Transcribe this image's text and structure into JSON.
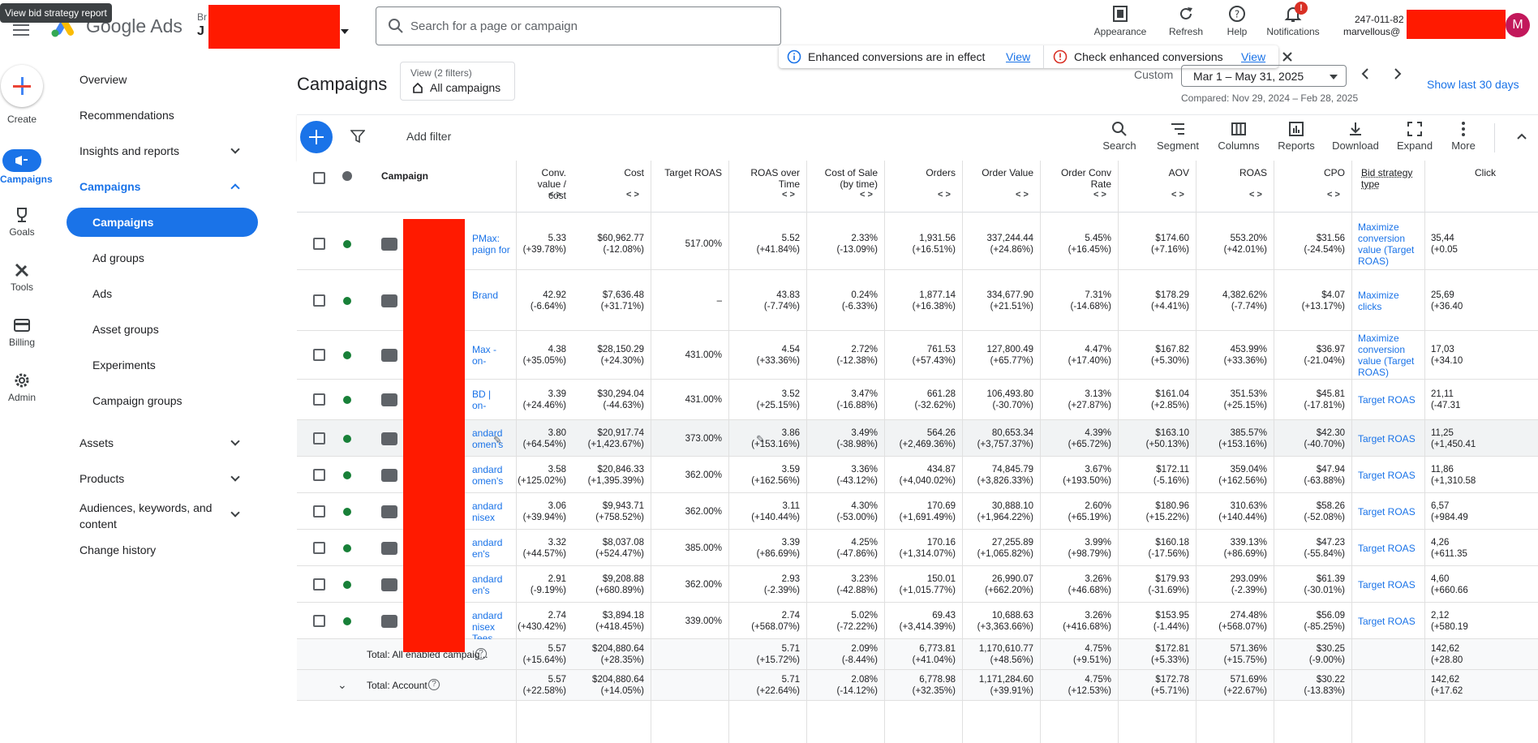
{
  "tooltip": "View bid strategy report",
  "header": {
    "brand": "Google Ads",
    "account_line1": "Br",
    "account_line2": "J",
    "search_placeholder": "Search for a page or campaign",
    "actions": [
      {
        "label": "Appearance",
        "icon": "appearance-icon"
      },
      {
        "label": "Refresh",
        "icon": "refresh-icon"
      },
      {
        "label": "Help",
        "icon": "help-icon"
      },
      {
        "label": "Notifications",
        "icon": "bell-icon"
      }
    ],
    "notification_badge": "!",
    "customer_id": "247-011-82",
    "customer_email": "marvellous@",
    "avatar_letter": "M"
  },
  "rail": [
    {
      "label": "Create",
      "icon": "plus-icon"
    },
    {
      "label": "Campaigns",
      "icon": "megaphone-icon"
    },
    {
      "label": "Goals",
      "icon": "trophy-icon"
    },
    {
      "label": "Tools",
      "icon": "tools-icon"
    },
    {
      "label": "Billing",
      "icon": "card-icon"
    },
    {
      "label": "Admin",
      "icon": "gear-icon"
    }
  ],
  "nav": {
    "overview": "Overview",
    "recommendations": "Recommendations",
    "insights": "Insights and reports",
    "campaigns_group": "Campaigns",
    "sub": [
      "Campaigns",
      "Ad groups",
      "Ads",
      "Asset groups",
      "Experiments",
      "Campaign groups"
    ],
    "assets": "Assets",
    "products": "Products",
    "audiences": "Audiences, keywords, and content",
    "change_history": "Change history"
  },
  "page": {
    "title": "Campaigns",
    "view_label": "View (2 filters)",
    "view_value": "All campaigns",
    "notice1": "Enhanced conversions are in effect",
    "notice1_link": "View",
    "notice2": "Check enhanced conversions",
    "notice2_link": "View",
    "date_label": "Custom",
    "date_range": "Mar 1 – May 31, 2025",
    "compared": "Compared: Nov 29, 2024 – Feb 28, 2025",
    "show_last": "Show last 30 days",
    "add_filter": "Add filter"
  },
  "tools": [
    "Search",
    "Segment",
    "Columns",
    "Reports",
    "Download",
    "Expand",
    "More"
  ],
  "columns": {
    "campaign": "Campaign",
    "conv_value_cost": "Conv. value / cost",
    "cost": "Cost",
    "target_roas": "Target ROAS",
    "roas_over_time": "ROAS over Time",
    "cost_of_sale": "Cost of Sale (by time)",
    "orders": "Orders",
    "order_value": "Order Value",
    "order_conv_rate": "Order Conv Rate",
    "aov": "AOV",
    "roas": "ROAS",
    "cpo": "CPO",
    "bid_strategy": "Bid strategy type",
    "clicks": "Click"
  },
  "rows": [
    {
      "name": "PMax:\npaign for",
      "type": "pmax",
      "cvc": "5.33",
      "cvc_d": "(+39.78%)",
      "cost": "$60,962.77",
      "cost_d": "(-12.08%)",
      "troas": "517.00%",
      "rot": "5.52",
      "rot_d": "(+41.84%)",
      "cos": "2.33%",
      "cos_d": "(-13.09%)",
      "orders": "1,931.56",
      "orders_d": "(+16.51%)",
      "ov": "337,244.44",
      "ov_d": "(+24.86%)",
      "ocr": "5.45%",
      "ocr_d": "(+16.45%)",
      "aov": "$174.60",
      "aov_d": "(+7.16%)",
      "roas": "553.20%",
      "roas_d": "(+42.01%)",
      "cpo": "$31.56",
      "cpo_d": "(-24.54%)",
      "bid": "Maximize\nconversion\nvalue (Target\nROAS)",
      "clicks": "35,44",
      "clicks_d": "(+0.05"
    },
    {
      "name": "Brand",
      "type": "search",
      "cvc": "42.92",
      "cvc_d": "(-6.64%)",
      "cost": "$7,636.48",
      "cost_d": "(+31.71%)",
      "troas": "–",
      "rot": "43.83",
      "rot_d": "(-7.74%)",
      "cos": "0.24%",
      "cos_d": "(-6.33%)",
      "orders": "1,877.14",
      "orders_d": "(+16.38%)",
      "ov": "334,677.90",
      "ov_d": "(+21.51%)",
      "ocr": "7.31%",
      "ocr_d": "(-14.68%)",
      "aov": "$178.29",
      "aov_d": "(+4.41%)",
      "roas": "4,382.62%",
      "roas_d": "(-7.74%)",
      "cpo": "$4.07",
      "cpo_d": "(+13.17%)",
      "bid": "Maximize\nclicks",
      "clicks": "25,69",
      "clicks_d": "(+36.40"
    },
    {
      "name": "Max -\non-",
      "type": "pmax",
      "cvc": "4.38",
      "cvc_d": "(+35.05%)",
      "cost": "$28,150.29",
      "cost_d": "(+24.30%)",
      "troas": "431.00%",
      "rot": "4.54",
      "rot_d": "(+33.36%)",
      "cos": "2.72%",
      "cos_d": "(-12.38%)",
      "orders": "761.53",
      "orders_d": "(+57.43%)",
      "ov": "127,800.49",
      "ov_d": "(+65.77%)",
      "ocr": "4.47%",
      "ocr_d": "(+17.40%)",
      "aov": "$167.82",
      "aov_d": "(+5.30%)",
      "roas": "453.99%",
      "roas_d": "(+33.36%)",
      "cpo": "$36.97",
      "cpo_d": "(-21.04%)",
      "bid": "Maximize\nconversion\nvalue (Target\nROAS)",
      "clicks": "17,03",
      "clicks_d": "(+34.10"
    },
    {
      "name": "BD |\non-",
      "type": "shopping",
      "cvc": "3.39",
      "cvc_d": "(+24.46%)",
      "cost": "$30,294.04",
      "cost_d": "(-44.63%)",
      "troas": "431.00%",
      "rot": "3.52",
      "rot_d": "(+25.15%)",
      "cos": "3.47%",
      "cos_d": "(-16.88%)",
      "orders": "661.28",
      "orders_d": "(-32.62%)",
      "ov": "106,493.80",
      "ov_d": "(-30.70%)",
      "ocr": "3.13%",
      "ocr_d": "(+27.87%)",
      "aov": "$161.04",
      "aov_d": "(+2.85%)",
      "roas": "351.53%",
      "roas_d": "(+25.15%)",
      "cpo": "$45.81",
      "cpo_d": "(-17.81%)",
      "bid": "Target ROAS",
      "clicks": "21,11",
      "clicks_d": "(-47.31"
    },
    {
      "name": "andard\nomen's",
      "type": "shopping",
      "cvc": "3.80",
      "cvc_d": "(+64.54%)",
      "cost": "$20,917.74",
      "cost_d": "(+1,423.67%)",
      "troas": "373.00%",
      "rot": "3.86",
      "rot_d": "(+153.16%)",
      "cos": "3.49%",
      "cos_d": "(-38.98%)",
      "orders": "564.26",
      "orders_d": "(+2,469.36%)",
      "ov": "80,653.34",
      "ov_d": "(+3,757.37%)",
      "ocr": "4.39%",
      "ocr_d": "(+65.72%)",
      "aov": "$163.10",
      "aov_d": "(+50.13%)",
      "roas": "385.57%",
      "roas_d": "(+153.16%)",
      "cpo": "$42.30",
      "cpo_d": "(-40.70%)",
      "bid": "Target ROAS",
      "clicks": "11,25",
      "clicks_d": "(+1,450.41"
    },
    {
      "name": "andard\nomen's",
      "type": "shopping",
      "cvc": "3.58",
      "cvc_d": "(+125.02%)",
      "cost": "$20,846.33",
      "cost_d": "(+1,395.39%)",
      "troas": "362.00%",
      "rot": "3.59",
      "rot_d": "(+162.56%)",
      "cos": "3.36%",
      "cos_d": "(-43.12%)",
      "orders": "434.87",
      "orders_d": "(+4,040.02%)",
      "ov": "74,845.79",
      "ov_d": "(+3,826.33%)",
      "ocr": "3.67%",
      "ocr_d": "(+193.50%)",
      "aov": "$172.11",
      "aov_d": "(-5.16%)",
      "roas": "359.04%",
      "roas_d": "(+162.56%)",
      "cpo": "$47.94",
      "cpo_d": "(-63.88%)",
      "bid": "Target ROAS",
      "clicks": "11,86",
      "clicks_d": "(+1,310.58"
    },
    {
      "name": "andard\nnisex",
      "type": "shopping",
      "cvc": "3.06",
      "cvc_d": "(+39.94%)",
      "cost": "$9,943.71",
      "cost_d": "(+758.52%)",
      "troas": "362.00%",
      "rot": "3.11",
      "rot_d": "(+140.44%)",
      "cos": "4.30%",
      "cos_d": "(-53.00%)",
      "orders": "170.69",
      "orders_d": "(+1,691.49%)",
      "ov": "30,888.10",
      "ov_d": "(+1,964.22%)",
      "ocr": "2.60%",
      "ocr_d": "(+65.19%)",
      "aov": "$180.96",
      "aov_d": "(+15.22%)",
      "roas": "310.63%",
      "roas_d": "(+140.44%)",
      "cpo": "$58.26",
      "cpo_d": "(-52.08%)",
      "bid": "Target ROAS",
      "clicks": "6,57",
      "clicks_d": "(+984.49"
    },
    {
      "name": "andard\nen's",
      "type": "shopping",
      "cvc": "3.32",
      "cvc_d": "(+44.57%)",
      "cost": "$8,037.08",
      "cost_d": "(+524.47%)",
      "troas": "385.00%",
      "rot": "3.39",
      "rot_d": "(+86.69%)",
      "cos": "4.25%",
      "cos_d": "(-47.86%)",
      "orders": "170.16",
      "orders_d": "(+1,314.07%)",
      "ov": "27,255.89",
      "ov_d": "(+1,065.82%)",
      "ocr": "3.99%",
      "ocr_d": "(+98.79%)",
      "aov": "$160.18",
      "aov_d": "(-17.56%)",
      "roas": "339.13%",
      "roas_d": "(+86.69%)",
      "cpo": "$47.23",
      "cpo_d": "(-55.84%)",
      "bid": "Target ROAS",
      "clicks": "4,26",
      "clicks_d": "(+611.35"
    },
    {
      "name": "andard\nen's",
      "type": "shopping",
      "cvc": "2.91",
      "cvc_d": "(-9.19%)",
      "cost": "$9,208.88",
      "cost_d": "(+680.89%)",
      "troas": "362.00%",
      "rot": "2.93",
      "rot_d": "(-2.39%)",
      "cos": "3.23%",
      "cos_d": "(-42.88%)",
      "orders": "150.01",
      "orders_d": "(+1,015.77%)",
      "ov": "26,990.07",
      "ov_d": "(+662.20%)",
      "ocr": "3.26%",
      "ocr_d": "(+46.68%)",
      "aov": "$179.93",
      "aov_d": "(-31.69%)",
      "roas": "293.09%",
      "roas_d": "(-2.39%)",
      "cpo": "$61.39",
      "cpo_d": "(-30.01%)",
      "bid": "Target ROAS",
      "clicks": "4,60",
      "clicks_d": "(+660.66"
    },
    {
      "name": "andard\nnisex\nTees",
      "type": "shopping",
      "cvc": "2.74",
      "cvc_d": "(+430.42%)",
      "cost": "$3,894.18",
      "cost_d": "(+418.45%)",
      "troas": "339.00%",
      "rot": "2.74",
      "rot_d": "(+568.07%)",
      "cos": "5.02%",
      "cos_d": "(-72.22%)",
      "orders": "69.43",
      "orders_d": "(+3,414.39%)",
      "ov": "10,688.63",
      "ov_d": "(+3,363.66%)",
      "ocr": "3.26%",
      "ocr_d": "(+416.68%)",
      "aov": "$153.95",
      "aov_d": "(-1.44%)",
      "roas": "274.48%",
      "roas_d": "(+568.07%)",
      "cpo": "$56.09",
      "cpo_d": "(-85.25%)",
      "bid": "Target ROAS",
      "clicks": "2,12",
      "clicks_d": "(+580.19"
    }
  ],
  "totals": [
    {
      "label": "Total: All enabled campaig...",
      "cvc": "5.57",
      "cvc_d": "(+15.64%)",
      "cost": "$204,880.64",
      "cost_d": "(+28.35%)",
      "rot": "5.71",
      "rot_d": "(+15.72%)",
      "cos": "2.09%",
      "cos_d": "(-8.44%)",
      "orders": "6,773.81",
      "orders_d": "(+41.04%)",
      "ov": "1,170,610.77",
      "ov_d": "(+48.56%)",
      "ocr": "4.75%",
      "ocr_d": "(+9.51%)",
      "aov": "$172.81",
      "aov_d": "(+5.33%)",
      "roas": "571.36%",
      "roas_d": "(+15.75%)",
      "cpo": "$30.25",
      "cpo_d": "(-9.00%)",
      "clicks": "142,62",
      "clicks_d": "(+28.80"
    },
    {
      "label": "Total: Account",
      "cvc": "5.57",
      "cvc_d": "(+22.58%)",
      "cost": "$204,880.64",
      "cost_d": "(+14.05%)",
      "rot": "5.71",
      "rot_d": "(+22.64%)",
      "cos": "2.08%",
      "cos_d": "(-14.12%)",
      "orders": "6,778.98",
      "orders_d": "(+32.35%)",
      "ov": "1,171,284.60",
      "ov_d": "(+39.91%)",
      "ocr": "4.75%",
      "ocr_d": "(+12.53%)",
      "aov": "$172.78",
      "aov_d": "(+5.71%)",
      "roas": "571.69%",
      "roas_d": "(+22.67%)",
      "cpo": "$30.22",
      "cpo_d": "(-13.83%)",
      "clicks": "142,62",
      "clicks_d": "(+17.62"
    }
  ]
}
